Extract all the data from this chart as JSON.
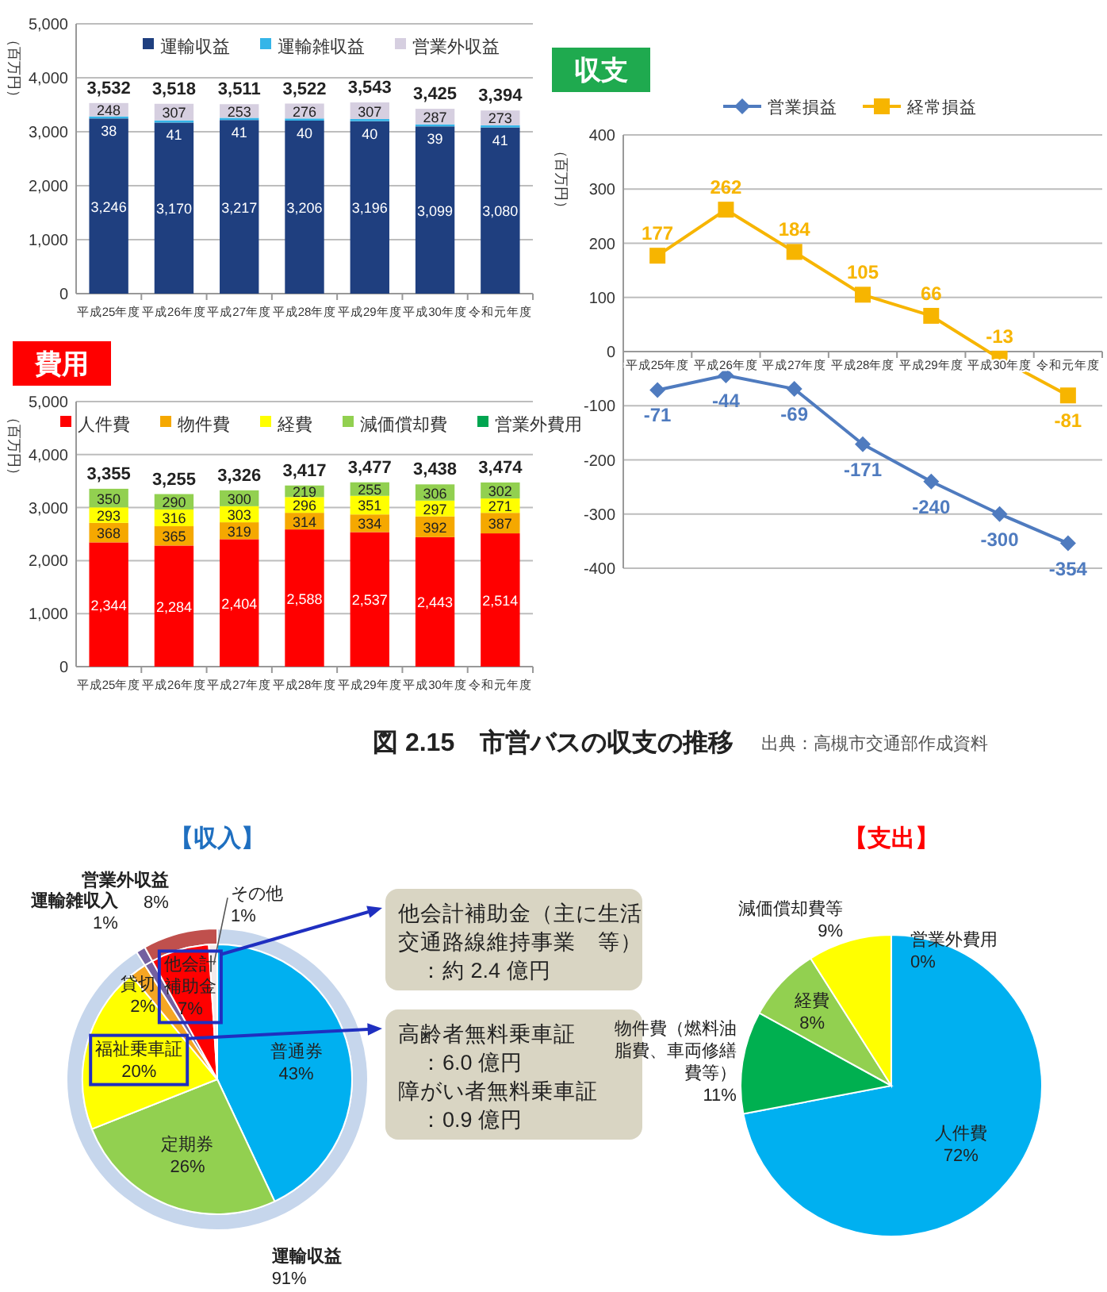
{
  "chart_data": [
    {
      "type": "bar",
      "stacked": true,
      "ylabel": "（百万円）",
      "categories": [
        "平成25年度",
        "平成26年度",
        "平成27年度",
        "平成28年度",
        "平成29年度",
        "平成30年度",
        "令和元年度"
      ],
      "ylim": [
        0,
        5000
      ],
      "yticks": [
        0,
        {
          "value": 1000,
          "label": "1,000"
        },
        {
          "value": 2000,
          "label": "2,000"
        },
        {
          "value": 3000,
          "label": "3,000"
        },
        {
          "value": 4000,
          "label": "4,000"
        },
        {
          "value": 5000,
          "label": "5,000"
        }
      ],
      "grid": "y",
      "legend": "top",
      "series": [
        {
          "name": "運輸収益",
          "color": "#1f3f7f",
          "values": [
            3246,
            3170,
            3217,
            3206,
            3196,
            3099,
            3080
          ],
          "value_labels": [
            "3,246",
            "3,170",
            "3,217",
            "3,206",
            "3,196",
            "3,099",
            "3,080"
          ]
        },
        {
          "name": "運輸雑収益",
          "color": "#35b5e8",
          "values": [
            38,
            41,
            41,
            40,
            40,
            39,
            41
          ],
          "value_labels": [
            "38",
            "41",
            "41",
            "40",
            "40",
            "39",
            "41"
          ]
        },
        {
          "name": "営業外収益",
          "color": "#d6cfe0",
          "values": [
            248,
            307,
            253,
            276,
            307,
            287,
            273
          ],
          "value_labels": [
            "248",
            "307",
            "253",
            "276",
            "307",
            "287",
            "273"
          ]
        }
      ],
      "totals": [
        "3,532",
        "3,518",
        "3,511",
        "3,522",
        "3,543",
        "3,425",
        "3,394"
      ]
    },
    {
      "type": "line",
      "title": "収支",
      "ylabel": "（百万円）",
      "categories": [
        "平成25年度",
        "平成26年度",
        "平成27年度",
        "平成28年度",
        "平成29年度",
        "平成30年度",
        "令和元年度"
      ],
      "ylim": [
        -400,
        400
      ],
      "yticks": [
        -400,
        -300,
        -200,
        -100,
        0,
        100,
        200,
        300,
        400
      ],
      "grid": "y",
      "legend": "top",
      "series": [
        {
          "name": "営業損益",
          "color": "#4f7bbf",
          "marker": "diamond",
          "values": [
            -71,
            -44,
            -69,
            -171,
            -240,
            -300,
            -354
          ],
          "value_labels": [
            "-71",
            "-44",
            "-69",
            "-171",
            "-240",
            "-300",
            "-354"
          ]
        },
        {
          "name": "経常損益",
          "color": "#f7b500",
          "marker": "square",
          "values": [
            177,
            262,
            184,
            105,
            66,
            -13,
            -81
          ],
          "value_labels": [
            "177",
            "262",
            "184",
            "105",
            "66",
            "-13",
            "-81"
          ]
        }
      ]
    },
    {
      "type": "bar",
      "stacked": true,
      "title": "費用",
      "ylabel": "（百万円）",
      "categories": [
        "平成25年度",
        "平成26年度",
        "平成27年度",
        "平成28年度",
        "平成29年度",
        "平成30年度",
        "令和元年度"
      ],
      "ylim": [
        0,
        5000
      ],
      "yticks": [
        0,
        {
          "value": 1000,
          "label": "1,000"
        },
        {
          "value": 2000,
          "label": "2,000"
        },
        {
          "value": 3000,
          "label": "3,000"
        },
        {
          "value": 4000,
          "label": "4,000"
        },
        {
          "value": 5000,
          "label": "5,000"
        }
      ],
      "grid": "y",
      "legend": "top",
      "series": [
        {
          "name": "人件費",
          "color": "#ff0000",
          "values": [
            2344,
            2284,
            2404,
            2588,
            2537,
            2443,
            2514
          ],
          "value_labels": [
            "2,344",
            "2,284",
            "2,404",
            "2,588",
            "2,537",
            "2,443",
            "2,514"
          ]
        },
        {
          "name": "物件費",
          "color": "#f5a800",
          "values": [
            368,
            365,
            319,
            314,
            334,
            392,
            387
          ],
          "value_labels": [
            "368",
            "365",
            "319",
            "314",
            "334",
            "392",
            "387"
          ]
        },
        {
          "name": "経費",
          "color": "#ffff00",
          "values": [
            293,
            316,
            303,
            296,
            351,
            297,
            271
          ],
          "value_labels": [
            "293",
            "316",
            "303",
            "296",
            "351",
            "297",
            "271"
          ]
        },
        {
          "name": "減価償却費",
          "color": "#92d050",
          "values": [
            350,
            290,
            300,
            219,
            255,
            306,
            302
          ],
          "value_labels": [
            "350",
            "290",
            "300",
            "219",
            "255",
            "306",
            "302"
          ]
        },
        {
          "name": "営業外費用",
          "color": "#00a550",
          "values": [
            0,
            0,
            0,
            0,
            0,
            0,
            0
          ]
        }
      ],
      "totals": [
        "3,355",
        "3,255",
        "3,326",
        "3,417",
        "3,477",
        "3,438",
        "3,474"
      ]
    },
    {
      "type": "other",
      "title": "図 2.15　市営バスの収支の推移",
      "annotations": [
        "出典：高槻市交通部作成資料"
      ]
    },
    {
      "type": "donut",
      "title": "【収入】",
      "categories": [
        "運輸収益",
        "運輸雑収入",
        "営業外収益"
      ],
      "values": [
        91,
        1,
        8
      ],
      "value_labels": [
        "91%",
        "1%",
        "8%"
      ],
      "colors": [
        "#c6d6ec",
        "#7460a0",
        "#c0504d"
      ]
    },
    {
      "type": "pie",
      "categories": [
        "普通券",
        "定期券",
        "福祉乗車証",
        "貸切",
        null,
        "他会計補助金",
        "その他"
      ],
      "values": [
        43,
        26,
        20,
        2,
        1,
        7,
        1
      ],
      "value_labels": [
        "43%",
        "26%",
        "20%",
        "2%",
        null,
        "7%",
        "1%"
      ],
      "colors": [
        "#00b0f0",
        "#92d050",
        "#ffff00",
        "#f5a623",
        "#7460a0",
        "#ff0000",
        "#f4eaea"
      ],
      "annotations": [
        "他会計補助金（主に生活交通路線維持事業　等）：約 2.4 億円",
        "高齢者無料乗車証：6.0 億円",
        "障がい者無料乗車証：0.9 億円"
      ]
    },
    {
      "type": "pie",
      "title": "【支出】",
      "categories": [
        "人件費",
        "物件費（燃料油脂費、車両修繕費等）",
        "経費",
        "減価償却費等",
        "営業外費用"
      ],
      "values": [
        72,
        11,
        8,
        9,
        0
      ],
      "value_labels": [
        "72%",
        "11%",
        "8%",
        "9%",
        "0%"
      ],
      "colors": [
        "#00b0f0",
        "#00b050",
        "#92d050",
        "#ffff00",
        "#ff0000"
      ]
    }
  ]
}
